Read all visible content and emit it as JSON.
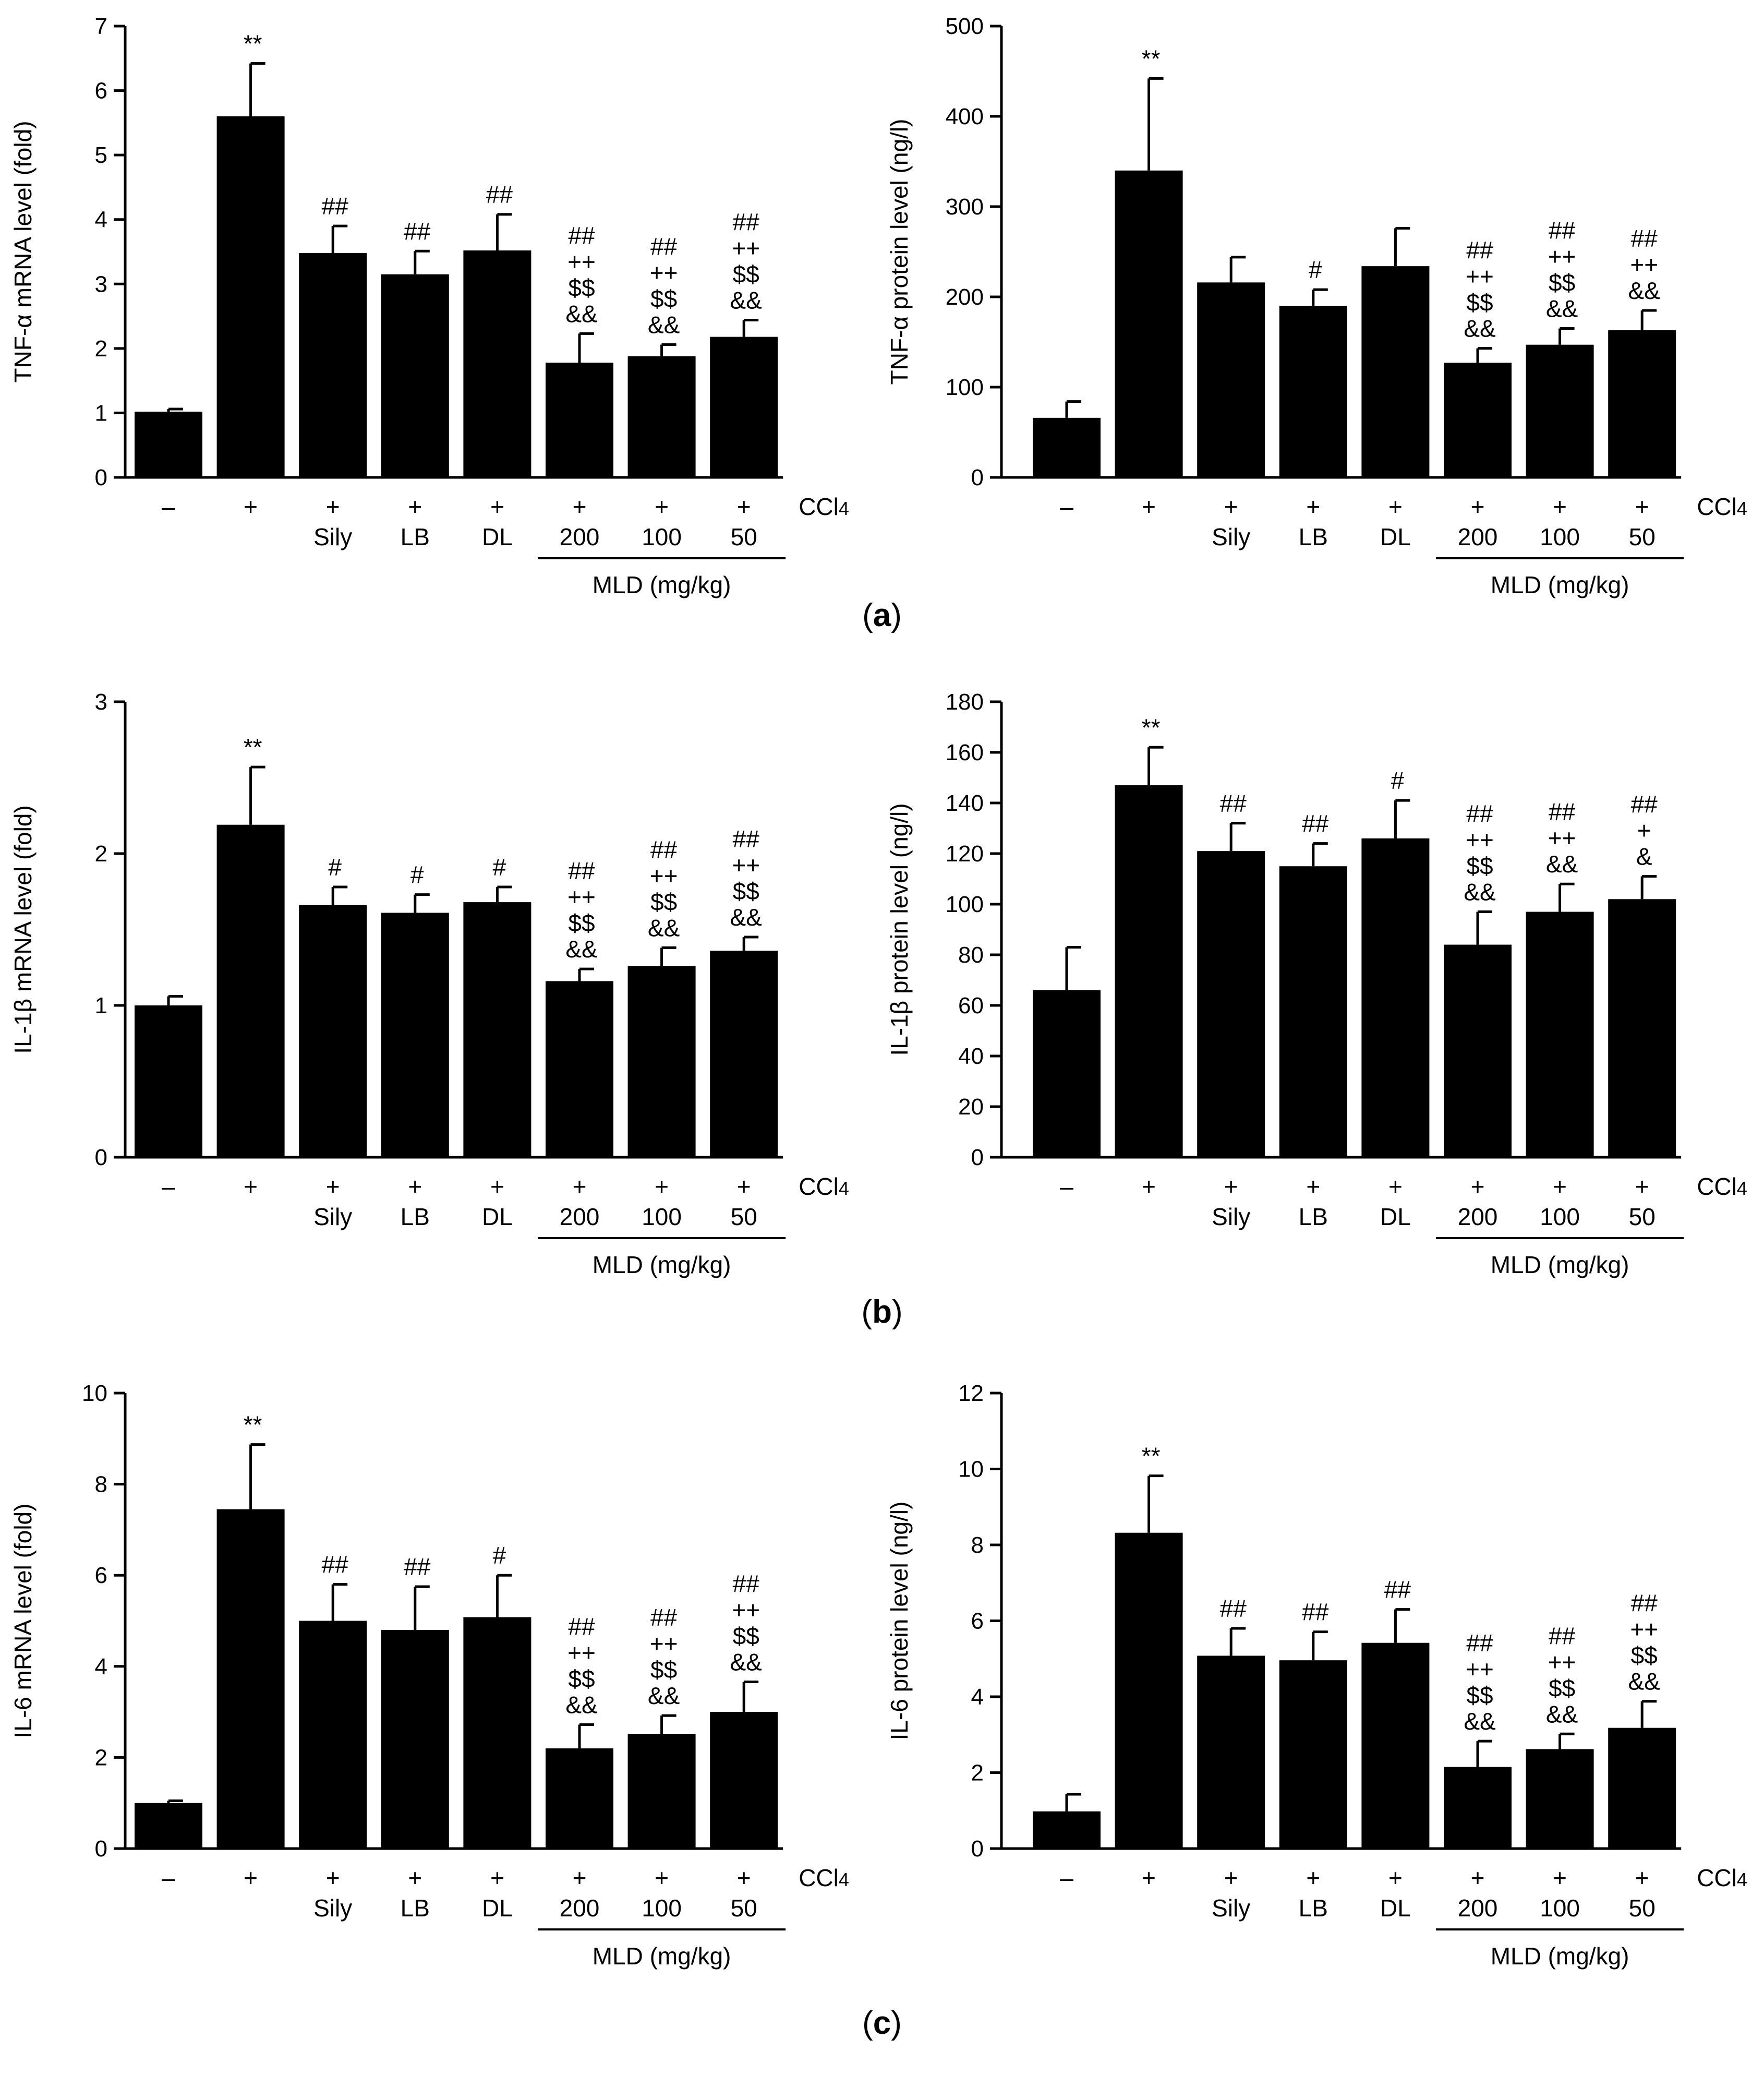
{
  "figure": {
    "panel_labels": [
      {
        "open": "(",
        "letter": "a",
        "close": ")"
      },
      {
        "open": "(",
        "letter": "b",
        "close": ")"
      },
      {
        "open": "(",
        "letter": "c",
        "close": ")"
      }
    ]
  },
  "chart_data": [
    {
      "type": "bar",
      "panel": "a",
      "ylabel": "TNF-α mRNA level (fold)",
      "ylim": [
        0,
        7
      ],
      "yticks": [
        0,
        1,
        2,
        3,
        4,
        5,
        6,
        7
      ],
      "categories": [
        "–",
        "+",
        "+",
        "+",
        "+",
        "+",
        "+",
        "+"
      ],
      "treatments": [
        "",
        "",
        "Sily",
        "LB",
        "DL",
        "200",
        "100",
        "50"
      ],
      "treatment_header": "CCl4",
      "group_label": "MLD (mg/kg)",
      "values": [
        1.02,
        5.6,
        3.48,
        3.15,
        3.52,
        1.78,
        1.88,
        2.18
      ],
      "errors": [
        0.04,
        0.82,
        0.42,
        0.36,
        0.56,
        0.45,
        0.18,
        0.26
      ],
      "significance": [
        [],
        [
          "**"
        ],
        [
          "##"
        ],
        [
          "##"
        ],
        [
          "##"
        ],
        [
          "##",
          "++",
          "$$",
          "&&"
        ],
        [
          "##",
          "++",
          "$$",
          "&&"
        ],
        [
          "##",
          "++",
          "$$",
          "&&"
        ]
      ]
    },
    {
      "type": "bar",
      "panel": "a",
      "ylabel": "TNF-α protein level (ng/l)",
      "ylim": [
        0,
        500
      ],
      "yticks": [
        0,
        100,
        200,
        300,
        400,
        500
      ],
      "categories": [
        "–",
        "+",
        "+",
        "+",
        "+",
        "+",
        "+",
        "+"
      ],
      "treatments": [
        "",
        "",
        "Sily",
        "LB",
        "DL",
        "200",
        "100",
        "50"
      ],
      "treatment_header": "CCl4",
      "group_label": "MLD (mg/kg)",
      "values": [
        66,
        340,
        216,
        190,
        234,
        127,
        147,
        163
      ],
      "errors": [
        18,
        102,
        28,
        18,
        42,
        16,
        18,
        22
      ],
      "significance": [
        [],
        [
          "**"
        ],
        [],
        [
          "#"
        ],
        [],
        [
          "##",
          "++",
          "$$",
          "&&"
        ],
        [
          "##",
          "++",
          "$$",
          "&&"
        ],
        [
          "##",
          "++",
          "&&"
        ]
      ]
    },
    {
      "type": "bar",
      "panel": "b",
      "ylabel": "IL-1β mRNA level (fold)",
      "ylim": [
        0,
        3
      ],
      "yticks": [
        0,
        1,
        2,
        3
      ],
      "categories": [
        "–",
        "+",
        "+",
        "+",
        "+",
        "+",
        "+",
        "+"
      ],
      "treatments": [
        "",
        "",
        "Sily",
        "LB",
        "DL",
        "200",
        "100",
        "50"
      ],
      "treatment_header": "CCl4",
      "group_label": "MLD (mg/kg)",
      "values": [
        1.0,
        2.19,
        1.66,
        1.61,
        1.68,
        1.16,
        1.26,
        1.36
      ],
      "errors": [
        0.06,
        0.38,
        0.12,
        0.12,
        0.1,
        0.08,
        0.12,
        0.09
      ],
      "significance": [
        [],
        [
          "**"
        ],
        [
          "#"
        ],
        [
          "#"
        ],
        [
          "#"
        ],
        [
          "##",
          "++",
          "$$",
          "&&"
        ],
        [
          "##",
          "++",
          "$$",
          "&&"
        ],
        [
          "##",
          "++",
          "$$",
          "&&"
        ]
      ]
    },
    {
      "type": "bar",
      "panel": "b",
      "ylabel": "IL-1β protein level (ng/l)",
      "ylim": [
        0,
        180
      ],
      "yticks": [
        0,
        20,
        40,
        60,
        80,
        100,
        120,
        140,
        160,
        180
      ],
      "categories": [
        "–",
        "+",
        "+",
        "+",
        "+",
        "+",
        "+",
        "+"
      ],
      "treatments": [
        "",
        "",
        "Sily",
        "LB",
        "DL",
        "200",
        "100",
        "50"
      ],
      "treatment_header": "CCl4",
      "group_label": "MLD (mg/kg)",
      "values": [
        66,
        147,
        121,
        115,
        126,
        84,
        97,
        102
      ],
      "errors": [
        17,
        15,
        11,
        9,
        15,
        13,
        11,
        9
      ],
      "significance": [
        [],
        [
          "**"
        ],
        [
          "##"
        ],
        [
          "##"
        ],
        [
          "#"
        ],
        [
          "##",
          "++",
          "$$",
          "&&"
        ],
        [
          "##",
          "++",
          "&&"
        ],
        [
          "##",
          "+",
          "&"
        ]
      ]
    },
    {
      "type": "bar",
      "panel": "c",
      "ylabel": "IL-6 mRNA level (fold)",
      "ylim": [
        0,
        10
      ],
      "yticks": [
        0,
        2,
        4,
        6,
        8,
        10
      ],
      "categories": [
        "–",
        "+",
        "+",
        "+",
        "+",
        "+",
        "+",
        "+"
      ],
      "treatments": [
        "",
        "",
        "Sily",
        "LB",
        "DL",
        "200",
        "100",
        "50"
      ],
      "treatment_header": "CCl4",
      "group_label": "MLD (mg/kg)",
      "values": [
        1.0,
        7.45,
        5.0,
        4.8,
        5.08,
        2.2,
        2.52,
        3.0
      ],
      "errors": [
        0.05,
        1.42,
        0.8,
        0.95,
        0.92,
        0.52,
        0.4,
        0.66
      ],
      "significance": [
        [],
        [
          "**"
        ],
        [
          "##"
        ],
        [
          "##"
        ],
        [
          "#"
        ],
        [
          "##",
          "++",
          "$$",
          "&&"
        ],
        [
          "##",
          "++",
          "$$",
          "&&"
        ],
        [
          "##",
          "++",
          "$$",
          "&&"
        ]
      ]
    },
    {
      "type": "bar",
      "panel": "c",
      "ylabel": "IL-6 protein level (ng/l)",
      "ylim": [
        0,
        12
      ],
      "yticks": [
        0,
        2,
        4,
        6,
        8,
        10,
        12
      ],
      "categories": [
        "–",
        "+",
        "+",
        "+",
        "+",
        "+",
        "+",
        "+"
      ],
      "treatments": [
        "",
        "",
        "Sily",
        "LB",
        "DL",
        "200",
        "100",
        "50"
      ],
      "treatment_header": "CCl4",
      "group_label": "MLD (mg/kg)",
      "values": [
        0.98,
        8.32,
        5.08,
        4.96,
        5.42,
        2.15,
        2.62,
        3.18
      ],
      "errors": [
        0.45,
        1.5,
        0.72,
        0.75,
        0.88,
        0.68,
        0.4,
        0.7
      ],
      "significance": [
        [],
        [
          "**"
        ],
        [
          "##"
        ],
        [
          "##"
        ],
        [
          "##"
        ],
        [
          "##",
          "++",
          "$$",
          "&&"
        ],
        [
          "##",
          "++",
          "$$",
          "&&"
        ],
        [
          "##",
          "++",
          "$$",
          "&&"
        ]
      ]
    }
  ]
}
